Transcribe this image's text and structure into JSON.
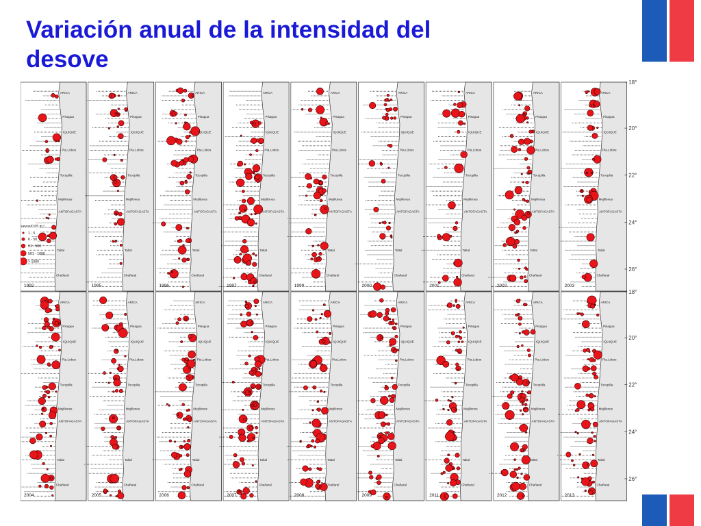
{
  "slide": {
    "title_line1": "Variación anual de la intensidad del",
    "title_line2": "desove",
    "colors": {
      "title": "#1a1ad6",
      "flag_blue": "#1c5bb8",
      "flag_red": "#ef3b43",
      "egg_marker": "#e8141a",
      "land": "#e6e6e6"
    }
  },
  "map_grid": {
    "rows": [
      {
        "years": [
          "1992",
          "1995",
          "1996",
          "1997",
          "1999",
          "2000",
          "2001",
          "2002",
          "2003"
        ]
      },
      {
        "years": [
          "2004",
          "2005",
          "2006",
          "2007",
          "2008",
          "2009",
          "2011",
          "2012",
          "2013"
        ]
      }
    ],
    "town_labels": [
      "ARICA",
      "Pisagua",
      "IQUIQUE",
      "Pta.Lobos",
      "Tocopilla",
      "Mejillones",
      "ANTOFAGASTA",
      "Taltal",
      "Chañaral"
    ],
    "latitude_labels": [
      "18°",
      "20°",
      "22°",
      "24°",
      "26°"
    ],
    "legend": {
      "title": "Huevos/0.05 m ²",
      "classes": [
        "1 - 5",
        "6 - 50",
        "51 - 500",
        "501 - 1000",
        "> 1000"
      ]
    }
  }
}
